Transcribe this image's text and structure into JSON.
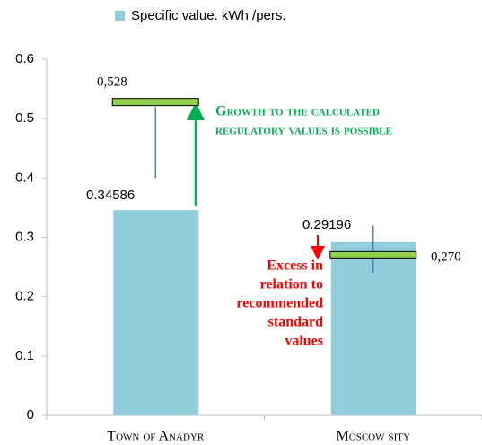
{
  "chart_data": {
    "type": "bar",
    "categories": [
      "Town of Anadyr",
      "Moscow sity"
    ],
    "series": [
      {
        "name": "Specific value. kWh /pers.",
        "color": "#92cddc",
        "values": [
          0.34586,
          0.29196
        ]
      }
    ],
    "error_bars": [
      {
        "low": 0.4,
        "high": 0.52
      },
      {
        "low": 0.24,
        "high": 0.32
      }
    ],
    "error_color": "#4f81bd",
    "reference_values": [
      0.528,
      0.27
    ],
    "reference_labels": [
      "0,528",
      "0,270"
    ],
    "reference_color": "#92d050",
    "annotations": {
      "growth": [
        "Growth to the calculated",
        "regulatory values is possible"
      ],
      "excess": [
        "Excess in",
        "relation to",
        "recommended",
        "standard",
        "values"
      ]
    },
    "ylim": [
      0,
      0.6
    ],
    "yticks": [
      0,
      0.1,
      0.2,
      0.3,
      0.4,
      0.5,
      0.6
    ],
    "grid": false,
    "legend": "top"
  }
}
